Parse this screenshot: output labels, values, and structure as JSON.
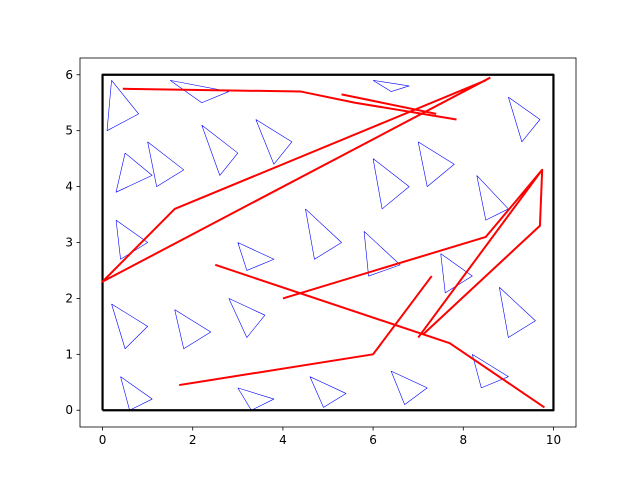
{
  "chart_data": {
    "type": "line",
    "xlim": [
      -0.5,
      10.5
    ],
    "ylim": [
      -0.3,
      6.3
    ],
    "xticks": [
      0,
      2,
      4,
      6,
      8,
      10
    ],
    "yticks": [
      0,
      1,
      2,
      3,
      4,
      5,
      6
    ],
    "series": [
      {
        "color": "#0000ff",
        "x": [
          0.2,
          0.8,
          0.1,
          0.2,
          null,
          1.0,
          1.8,
          1.2,
          1.0,
          null,
          2.2,
          3.0,
          2.6,
          2.2,
          null,
          3.4,
          4.2,
          3.8,
          3.4,
          null,
          0.3,
          1.0,
          0.4,
          0.3,
          null,
          0.5,
          1.1,
          0.3,
          0.5,
          null,
          6.0,
          6.8,
          6.2,
          6.0,
          null,
          7.0,
          7.8,
          7.2,
          7.0,
          null,
          4.5,
          5.3,
          4.7,
          4.5,
          null,
          5.8,
          6.6,
          5.9,
          5.8,
          null,
          3.0,
          3.8,
          3.2,
          3.0,
          null,
          8.3,
          9.0,
          8.5,
          8.3,
          null,
          9.0,
          9.7,
          9.3,
          9.0,
          null,
          8.8,
          9.6,
          9.0,
          8.8,
          null,
          8.2,
          9.0,
          8.4,
          8.2,
          null,
          0.2,
          1.0,
          0.5,
          0.2,
          null,
          1.6,
          2.4,
          1.8,
          1.6,
          null,
          2.8,
          3.6,
          3.2,
          2.8,
          null,
          0.4,
          1.1,
          0.6,
          0.4,
          null,
          3.0,
          3.8,
          3.3,
          3.0,
          null,
          4.6,
          5.4,
          4.9,
          4.6,
          null,
          6.4,
          7.2,
          6.7,
          6.4,
          null,
          7.5,
          8.2,
          7.6,
          7.5,
          null,
          6.0,
          6.8,
          6.4,
          6.0,
          null,
          1.5,
          2.8,
          2.2,
          1.5
        ],
        "y": [
          5.9,
          5.3,
          5.0,
          5.9,
          null,
          4.8,
          4.3,
          4.0,
          4.8,
          null,
          5.1,
          4.6,
          4.2,
          5.1,
          null,
          5.2,
          4.8,
          4.4,
          5.2,
          null,
          3.4,
          3.0,
          2.7,
          3.4,
          null,
          4.6,
          4.2,
          3.9,
          4.6,
          null,
          4.5,
          4.0,
          3.6,
          4.5,
          null,
          4.8,
          4.4,
          4.0,
          4.8,
          null,
          3.6,
          3.0,
          2.7,
          3.6,
          null,
          3.2,
          2.6,
          2.4,
          3.2,
          null,
          3.0,
          2.7,
          2.5,
          3.0,
          null,
          4.2,
          3.6,
          3.4,
          4.2,
          null,
          5.6,
          5.2,
          4.8,
          5.6,
          null,
          2.2,
          1.6,
          1.3,
          2.2,
          null,
          1.0,
          0.6,
          0.4,
          1.0,
          null,
          1.9,
          1.5,
          1.1,
          1.9,
          null,
          1.8,
          1.4,
          1.1,
          1.8,
          null,
          2.0,
          1.7,
          1.3,
          2.0,
          null,
          0.6,
          0.2,
          0.0,
          0.6,
          null,
          0.4,
          0.2,
          0.0,
          0.4,
          null,
          0.6,
          0.3,
          0.05,
          0.6,
          null,
          0.7,
          0.4,
          0.1,
          0.7,
          null,
          2.8,
          2.4,
          2.1,
          2.8,
          null,
          5.9,
          5.8,
          5.7,
          5.9,
          null,
          5.9,
          5.7,
          5.5,
          5.9
        ]
      },
      {
        "color": "#000000",
        "x": [
          0,
          10,
          10,
          0,
          0
        ],
        "y": [
          0,
          0,
          6,
          6,
          0
        ]
      },
      {
        "color": "#ff0000",
        "x": [
          0.45,
          4.4,
          5.6,
          7.85,
          null,
          5.3,
          7.4,
          null,
          8.6,
          0,
          1.6,
          8.5,
          null,
          2.5,
          7.7,
          9.8,
          null,
          1.7,
          6.0,
          7.3,
          null,
          7.0,
          9.75,
          9.7,
          7.1,
          null,
          4.0,
          8.5,
          9.75
        ],
        "y": [
          5.75,
          5.7,
          5.5,
          5.2,
          null,
          5.65,
          5.3,
          null,
          5.95,
          2.3,
          3.6,
          5.9,
          null,
          2.6,
          1.2,
          0.05,
          null,
          0.45,
          1.0,
          2.4,
          null,
          1.3,
          4.3,
          3.3,
          1.35,
          null,
          2.0,
          3.1,
          4.3
        ]
      }
    ]
  }
}
